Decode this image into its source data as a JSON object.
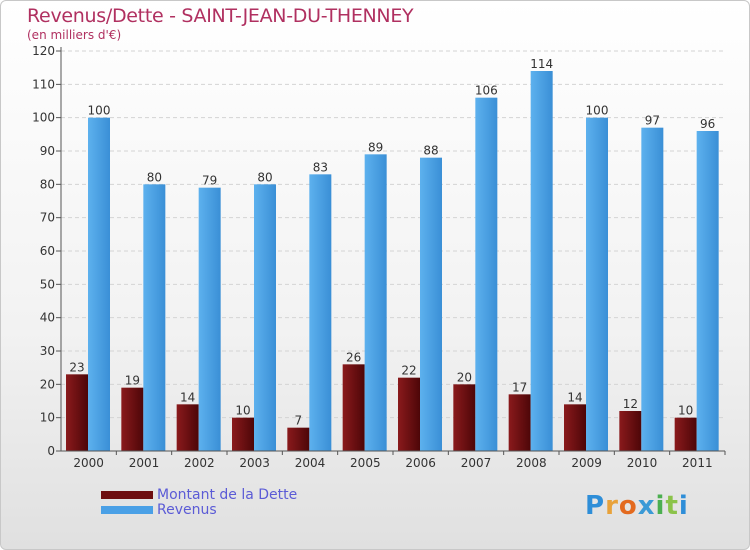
{
  "header": {
    "title": "Revenus/Dette - SAINT-JEAN-DU-THENNEY",
    "subtitle": "(en milliers d'€)"
  },
  "logo": {
    "letters": [
      "P",
      "r",
      "o",
      "x",
      "i",
      "t",
      "i"
    ],
    "colors": [
      "#2e8ed8",
      "#e8a23a",
      "#e36a1f",
      "#3b9ad6",
      "#4caf50",
      "#8bc34a",
      "#2e8ed8"
    ]
  },
  "colors": {
    "debt": "#6e0e10",
    "revenue": "#4aa0e6",
    "grid": "#d4d4d4",
    "axis": "#555555"
  },
  "chart_data": {
    "type": "bar",
    "title": "Revenus/Dette - SAINT-JEAN-DU-THENNEY",
    "subtitle": "(en milliers d'€)",
    "categories": [
      "2000",
      "2001",
      "2002",
      "2003",
      "2004",
      "2005",
      "2006",
      "2007",
      "2008",
      "2009",
      "2010",
      "2011"
    ],
    "series": [
      {
        "name": "Montant de la Dette",
        "values": [
          23,
          19,
          14,
          10,
          7,
          26,
          22,
          20,
          17,
          14,
          12,
          10
        ]
      },
      {
        "name": "Revenus",
        "values": [
          100,
          80,
          79,
          80,
          83,
          89,
          88,
          106,
          114,
          100,
          97,
          96
        ]
      }
    ],
    "yticks": [
      0,
      10,
      20,
      30,
      40,
      50,
      60,
      70,
      80,
      90,
      100,
      110,
      120
    ],
    "ylim": [
      0,
      120
    ],
    "grid": true,
    "legend": "bottom-left"
  }
}
